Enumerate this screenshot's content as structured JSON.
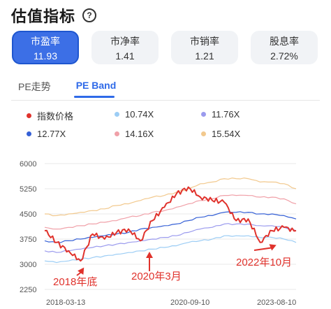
{
  "header": {
    "title": "估值指标",
    "help_icon": "?"
  },
  "cards": [
    {
      "label": "市盈率",
      "value": "11.93",
      "active": true
    },
    {
      "label": "市净率",
      "value": "1.41",
      "active": false
    },
    {
      "label": "市销率",
      "value": "1.21",
      "active": false
    },
    {
      "label": "股息率",
      "value": "2.72%",
      "active": false
    }
  ],
  "tabs": [
    {
      "label": "PE走势",
      "active": false
    },
    {
      "label": "PE Band",
      "active": true
    }
  ],
  "colors": {
    "index": "#e0322c",
    "b10_74": "#9ccdf5",
    "b11_76": "#9b9bee",
    "b12_77": "#3560d6",
    "b14_16": "#f0a0a8",
    "b15_54": "#f2c98e",
    "accent": "#2f6ae8",
    "arrow": "#e0322c"
  },
  "legend": [
    {
      "label": "指数价格",
      "color": "#e0322c"
    },
    {
      "label": "10.74X",
      "color": "#9ccdf5"
    },
    {
      "label": "11.76X",
      "color": "#9b9bee"
    },
    {
      "label": "12.77X",
      "color": "#3560d6"
    },
    {
      "label": "14.16X",
      "color": "#f0a0a8"
    },
    {
      "label": "15.54X",
      "color": "#f2c98e"
    }
  ],
  "chart_data": {
    "type": "line",
    "x_ticks": [
      "2018-03-13",
      "2020-09-10",
      "2023-08-10"
    ],
    "ylim": [
      2250,
      6000
    ],
    "y_ticks": [
      2250,
      3000,
      3750,
      4500,
      5250,
      6000
    ],
    "grid": true,
    "legend_position": "top",
    "x": [
      "2018-03",
      "2018-06",
      "2018-09",
      "2018-12",
      "2019-03",
      "2019-06",
      "2019-09",
      "2019-12",
      "2020-03",
      "2020-06",
      "2020-09",
      "2020-12",
      "2021-03",
      "2021-06",
      "2021-09",
      "2021-12",
      "2022-03",
      "2022-06",
      "2022-10",
      "2023-01",
      "2023-04",
      "2023-08"
    ],
    "series": [
      {
        "name": "指数价格",
        "values": [
          4000,
          3650,
          3400,
          3100,
          3900,
          3750,
          3950,
          4050,
          3700,
          4300,
          4700,
          5100,
          5300,
          5000,
          4900,
          4850,
          4300,
          4350,
          3650,
          4000,
          4100,
          4000
        ]
      },
      {
        "name": "10.74X",
        "values": [
          3100,
          3050,
          3100,
          3150,
          3200,
          3250,
          3300,
          3350,
          3400,
          3450,
          3500,
          3550,
          3650,
          3700,
          3750,
          3850,
          3850,
          3850,
          3800,
          3800,
          3750,
          3650
        ]
      },
      {
        "name": "11.76X",
        "values": [
          3400,
          3350,
          3400,
          3450,
          3500,
          3550,
          3600,
          3650,
          3700,
          3750,
          3800,
          3850,
          3950,
          4050,
          4100,
          4200,
          4200,
          4200,
          4150,
          4150,
          4100,
          4000
        ]
      },
      {
        "name": "12.77X",
        "values": [
          3700,
          3650,
          3700,
          3750,
          3800,
          3850,
          3900,
          3950,
          4050,
          4100,
          4150,
          4200,
          4300,
          4400,
          4450,
          4550,
          4550,
          4550,
          4500,
          4500,
          4450,
          4350
        ]
      },
      {
        "name": "14.16X",
        "values": [
          4100,
          4050,
          4100,
          4150,
          4200,
          4250,
          4300,
          4400,
          4450,
          4550,
          4600,
          4700,
          4800,
          4900,
          4950,
          5050,
          5050,
          5050,
          5000,
          5000,
          4950,
          4800
        ]
      },
      {
        "name": "15.54X",
        "values": [
          4500,
          4450,
          4500,
          4550,
          4600,
          4650,
          4750,
          4800,
          4900,
          5000,
          5050,
          5150,
          5250,
          5400,
          5450,
          5550,
          5550,
          5550,
          5450,
          5450,
          5400,
          5250
        ]
      }
    ],
    "annotations": [
      {
        "text": "2018年底",
        "x": "2018-12",
        "y": 3100
      },
      {
        "text": "2020年3月",
        "x": "2020-03",
        "y": 3700
      },
      {
        "text": "2022年10月",
        "x": "2022-10",
        "y": 3650
      }
    ]
  }
}
